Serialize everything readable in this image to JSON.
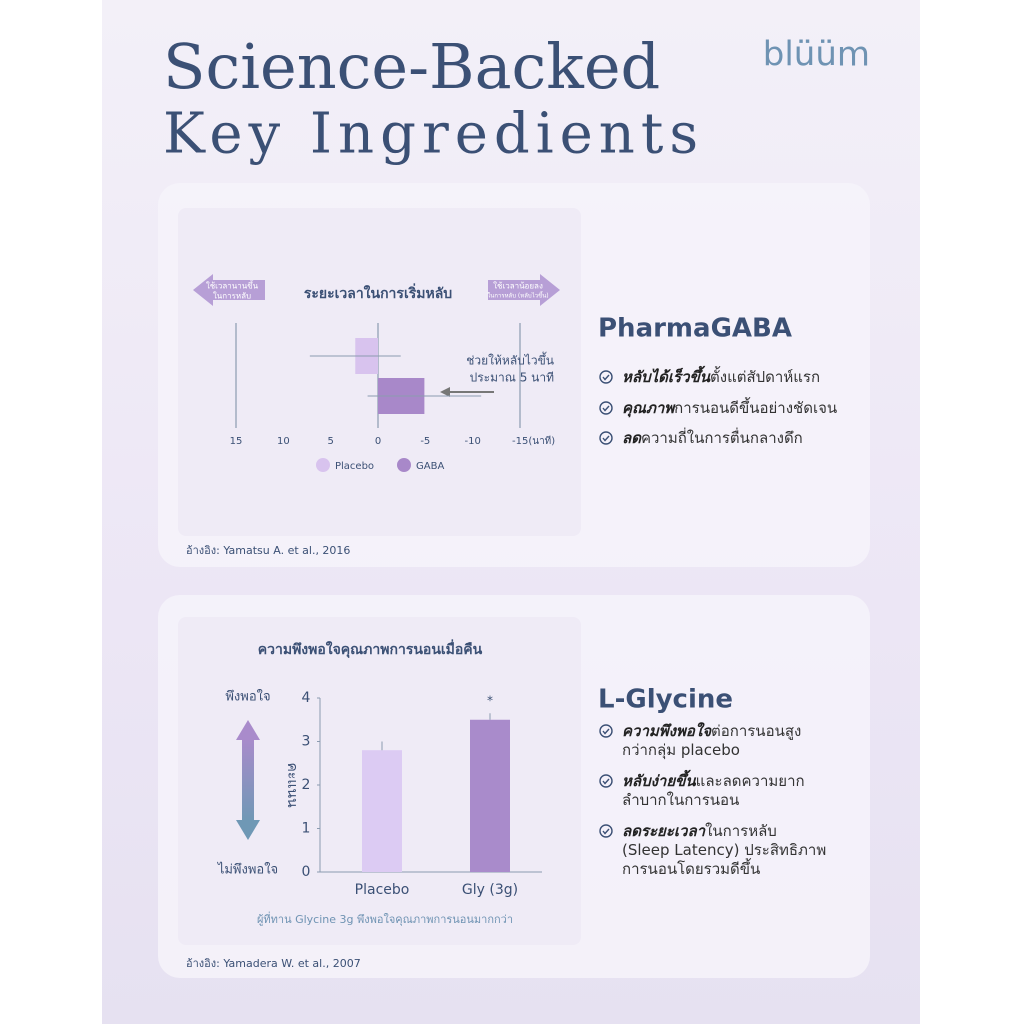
{
  "header": {
    "title": [
      "Science-Backed",
      "Key Ingredients"
    ],
    "logo": "blüüm"
  },
  "chart_data": [
    {
      "type": "hbar",
      "title": "ระยะเวลาในการเริ่มหลับ",
      "direction_labels": {
        "left": [
          "ใช้เวลานานขึ้น",
          "ในการหลับ"
        ],
        "right": [
          "ใช้เวลาน้อยลง",
          "ในการหลับ (หลับไวขึ้น)"
        ]
      },
      "categories": [
        "Placebo",
        "GABA"
      ],
      "values": [
        2.4,
        -4.9
      ],
      "errors": [
        4.8,
        6
      ],
      "colors": [
        "#d8c3ee",
        "#a888c9"
      ],
      "xlim": [
        15,
        -15
      ],
      "xticks": [
        15,
        10,
        5,
        0,
        -5,
        -10,
        {
          "value": -15,
          "label": "-15(นาที)"
        }
      ],
      "annotation": [
        "ช่วยให้หลับไวขึ้น",
        "ประมาณ 5 นาที"
      ],
      "reference": "อ้างอิง: Yamatsu A. et al., 2016"
    },
    {
      "type": "bar",
      "title": "ความพึงพอใจคุณภาพการนอนเมื่อคืน",
      "categories": [
        "Placebo",
        "Gly (3g)"
      ],
      "values": [
        2.8,
        3.5
      ],
      "errors": [
        0.2,
        0.15
      ],
      "value_annotations": [
        null,
        "*"
      ],
      "colors": [
        "#dccbf3",
        "#a98bcb"
      ],
      "ylim": [
        0,
        4
      ],
      "yticks": [
        0,
        1,
        2,
        3,
        4
      ],
      "ylabel": "คะแนน",
      "scale_labels": {
        "top": "พึงพอใจ",
        "bottom": "ไม่พึงพอใจ"
      },
      "note": "ผู้ที่ทาน Glycine 3g พึงพอใจคุณภาพการนอนมากกว่า",
      "reference": "อ้างอิง: Yamadera W. et al., 2007"
    }
  ],
  "sections": [
    {
      "title": "PharmaGABA",
      "bullets": [
        [
          [
            {
              "text": "หลับได้เร็วขึ้น",
              "emphasis": true
            },
            {
              "text": "ตั้งแต่สัปดาห์แรก"
            }
          ]
        ],
        [
          [
            {
              "text": "คุณภาพ",
              "emphasis": true
            },
            {
              "text": "การนอนดีขึ้นอย่างชัดเจน"
            }
          ]
        ],
        [
          [
            {
              "text": "ลด",
              "emphasis": true
            },
            {
              "text": "ความถี่ในการตื่นกลางดึก"
            }
          ]
        ]
      ]
    },
    {
      "title": "L-Glycine",
      "bullets": [
        [
          [
            {
              "text": "ความพึงพอใจ",
              "emphasis": true
            },
            {
              "text": "ต่อการนอนสูง"
            }
          ],
          [
            {
              "text": "กว่ากลุ่ม placebo"
            }
          ]
        ],
        [
          [
            {
              "text": "หลับง่ายขึ้น",
              "emphasis": true
            },
            {
              "text": "และลดความยาก"
            }
          ],
          [
            {
              "text": "ลำบากในการนอน"
            }
          ]
        ],
        [
          [
            {
              "text": "ลดระยะเวลา",
              "emphasis": true
            },
            {
              "text": "ในการหลับ"
            }
          ],
          [
            {
              "text": "(Sleep Latency) ประสิทธิภาพ"
            }
          ],
          [
            {
              "text": "การนอนโดยรวมดีขึ้น"
            }
          ]
        ]
      ]
    }
  ]
}
